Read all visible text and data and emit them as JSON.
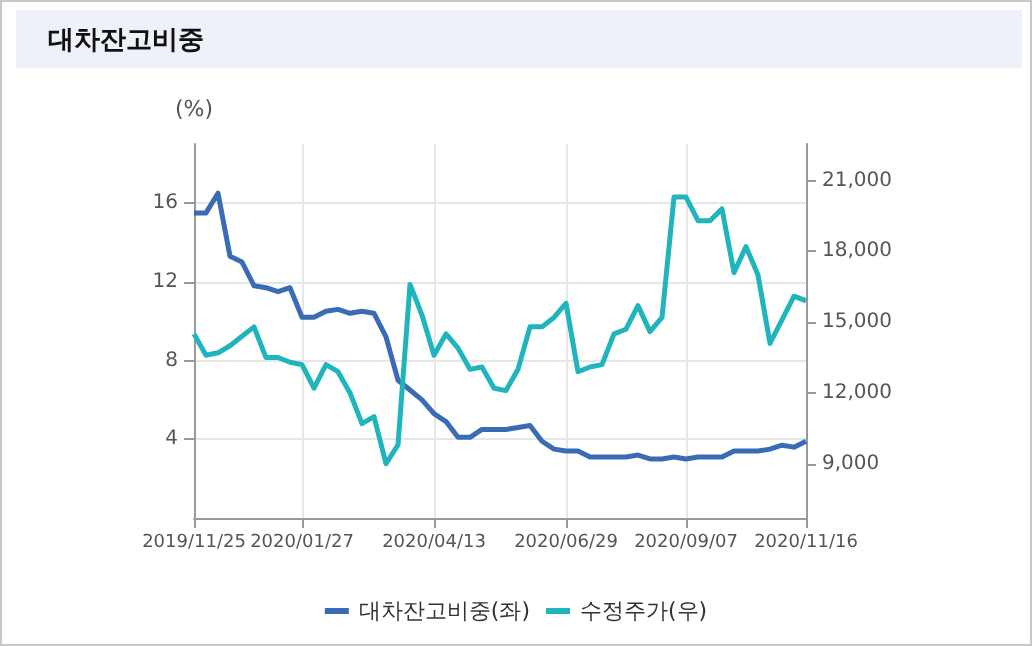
{
  "chart_data": {
    "type": "line",
    "title": "대차잔고비중",
    "ylabel": "(%)",
    "x": [
      "2019-11-25",
      "2019-12-02",
      "2019-12-09",
      "2019-12-16",
      "2019-12-23",
      "2019-12-30",
      "2020-01-06",
      "2020-01-13",
      "2020-01-20",
      "2020-01-27",
      "2020-02-03",
      "2020-02-10",
      "2020-02-17",
      "2020-02-24",
      "2020-03-02",
      "2020-03-09",
      "2020-03-16",
      "2020-03-23",
      "2020-03-30",
      "2020-04-06",
      "2020-04-13",
      "2020-04-20",
      "2020-04-27",
      "2020-05-04",
      "2020-05-11",
      "2020-05-18",
      "2020-05-25",
      "2020-06-01",
      "2020-06-08",
      "2020-06-15",
      "2020-06-22",
      "2020-06-29",
      "2020-07-06",
      "2020-07-13",
      "2020-07-20",
      "2020-07-27",
      "2020-08-03",
      "2020-08-10",
      "2020-08-17",
      "2020-08-24",
      "2020-08-31",
      "2020-09-07",
      "2020-09-14",
      "2020-09-21",
      "2020-09-28",
      "2020-10-05",
      "2020-10-12",
      "2020-10-19",
      "2020-10-26",
      "2020-11-02",
      "2020-11-09",
      "2020-11-16"
    ],
    "series": [
      {
        "name": "대차잔고비중(좌)",
        "color": "#3a6cb5",
        "values": [
          15.5,
          15.5,
          16.5,
          13.3,
          13.0,
          11.8,
          11.7,
          11.5,
          11.7,
          10.2,
          10.2,
          10.5,
          10.6,
          10.4,
          10.5,
          10.4,
          9.2,
          7.0,
          6.5,
          6.0,
          5.3,
          4.9,
          4.1,
          4.1,
          4.5,
          4.5,
          4.5,
          4.6,
          4.7,
          3.9,
          3.5,
          3.4,
          3.4,
          3.1,
          3.1,
          3.1,
          3.1,
          3.2,
          3.0,
          3.0,
          3.1,
          3.0,
          3.1,
          3.1,
          3.1,
          3.4,
          3.4,
          3.4,
          3.5,
          3.7,
          3.6,
          3.9
        ]
      },
      {
        "name": "수정주가(우)",
        "color": "#20b4bc",
        "axis": "y2",
        "values": [
          14500,
          13600,
          13700,
          14000,
          14400,
          14800,
          13500,
          13500,
          13300,
          13200,
          12200,
          13200,
          12900,
          12000,
          10700,
          11000,
          9000,
          9800,
          16600,
          15300,
          13600,
          14500,
          13900,
          13000,
          13100,
          12200,
          12100,
          13000,
          14800,
          14800,
          15200,
          15800,
          12900,
          13100,
          13200,
          14500,
          14700,
          15700,
          14600,
          15200,
          20300,
          20300,
          19300,
          19300,
          19800,
          17100,
          18200,
          17000,
          14100,
          15100,
          16100,
          15900
        ]
      }
    ],
    "ylim": [
      0,
      19
    ],
    "yticks": [
      4,
      8,
      12,
      16
    ],
    "y2lim": [
      6700,
      22550
    ],
    "y2ticks": [
      {
        "value": 9000,
        "label": "9,000"
      },
      {
        "value": 12000,
        "label": "12,000"
      },
      {
        "value": 15000,
        "label": "15,000"
      },
      {
        "value": 18000,
        "label": "18,000"
      },
      {
        "value": 21000,
        "label": "21,000"
      }
    ],
    "xlim": [
      "2019-11-25",
      "2020-11-16"
    ],
    "xticks": [
      {
        "value": "2019-11-25",
        "label": "2019/11/25"
      },
      {
        "value": "2020-01-27",
        "label": "2020/01/27"
      },
      {
        "value": "2020-04-13",
        "label": "2020/04/13"
      },
      {
        "value": "2020-06-29",
        "label": "2020/06/29"
      },
      {
        "value": "2020-09-07",
        "label": "2020/09/07"
      },
      {
        "value": "2020-11-16",
        "label": "2020/11/16"
      }
    ],
    "grid": true,
    "legend": "bottom",
    "marker": "none",
    "line_style": "solid"
  }
}
